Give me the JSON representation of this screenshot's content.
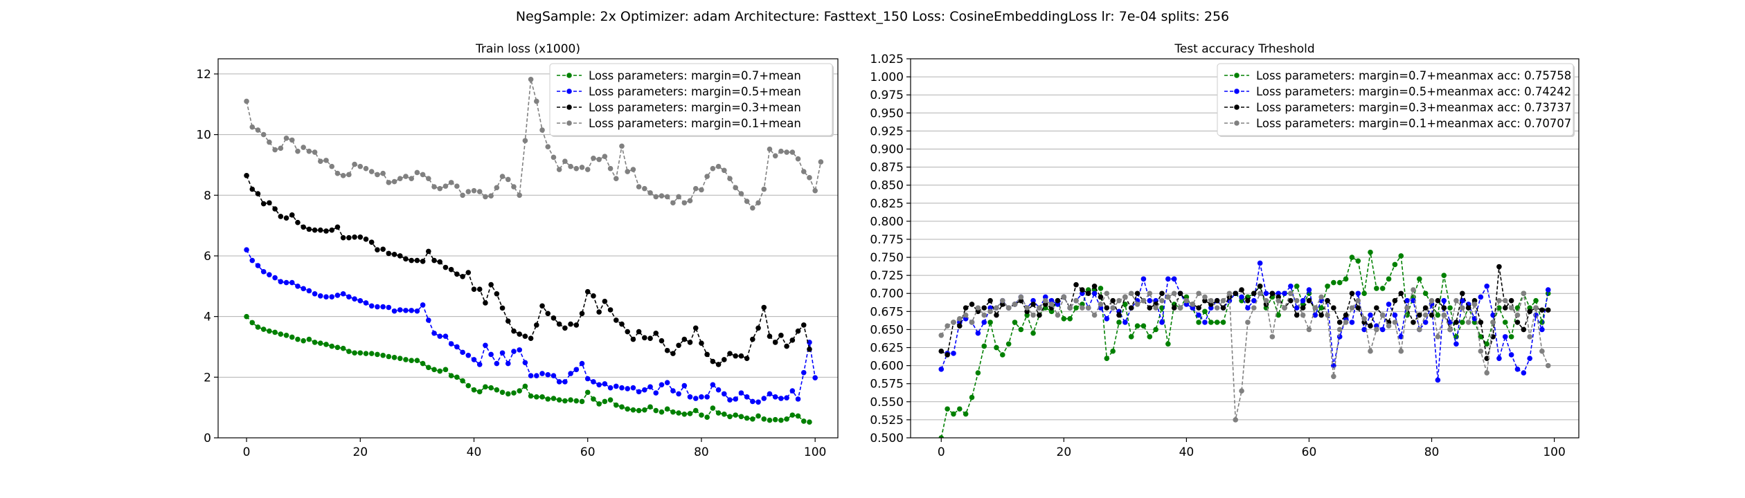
{
  "figure": {
    "suptitle": "NegSample: 2x Optimizer: adam Architecture: Fasttext_150 Loss: CosineEmbeddingLoss lr: 7e-04 splits: 256"
  },
  "chart_data": [
    {
      "type": "line",
      "title": "Train loss (x1000)",
      "xlabel": "",
      "ylabel": "",
      "xlim": [
        -5,
        104
      ],
      "ylim": [
        0,
        12.5
      ],
      "xticks": [
        "0",
        "20",
        "40",
        "60",
        "80",
        "100"
      ],
      "yticks": [
        "0",
        "2",
        "4",
        "6",
        "8",
        "10",
        "12"
      ],
      "grid": "horizontal",
      "legend_position": "top-right",
      "x": "0..99",
      "series": [
        {
          "name": "Loss parameters: margin=0.7+mean",
          "color": "#008000",
          "values": [
            4.0,
            3.8,
            3.65,
            3.58,
            3.52,
            3.48,
            3.42,
            3.38,
            3.32,
            3.25,
            3.2,
            3.25,
            3.15,
            3.12,
            3.08,
            3.02,
            2.98,
            2.95,
            2.85,
            2.8,
            2.8,
            2.78,
            2.78,
            2.75,
            2.72,
            2.68,
            2.65,
            2.62,
            2.58,
            2.55,
            2.55,
            2.45,
            2.32,
            2.25,
            2.2,
            2.25,
            2.05,
            2.0,
            1.88,
            1.72,
            1.58,
            1.52,
            1.68,
            1.65,
            1.58,
            1.5,
            1.45,
            1.48,
            1.55,
            1.7,
            1.38,
            1.35,
            1.35,
            1.28,
            1.3,
            1.25,
            1.22,
            1.25,
            1.22,
            1.2,
            1.5,
            1.28,
            1.12,
            1.2,
            1.25,
            1.08,
            1.02,
            0.95,
            0.92,
            0.9,
            0.92,
            1.02,
            0.9,
            0.85,
            0.95,
            0.85,
            0.82,
            0.78,
            0.8,
            0.9,
            0.75,
            0.68,
            0.98,
            0.82,
            0.78,
            0.7,
            0.75,
            0.7,
            0.65,
            0.62,
            0.72,
            0.62,
            0.58,
            0.6,
            0.58,
            0.62,
            0.75,
            0.72,
            0.55,
            0.52
          ]
        },
        {
          "name": "Loss parameters: margin=0.5+mean",
          "color": "#0000ff",
          "values": [
            6.2,
            5.85,
            5.68,
            5.48,
            5.38,
            5.28,
            5.15,
            5.12,
            5.12,
            5.0,
            4.92,
            4.85,
            4.75,
            4.68,
            4.65,
            4.65,
            4.7,
            4.75,
            4.65,
            4.58,
            4.52,
            4.45,
            4.35,
            4.32,
            4.32,
            4.3,
            4.18,
            4.22,
            4.2,
            4.2,
            4.18,
            4.38,
            3.88,
            3.45,
            3.35,
            3.35,
            3.1,
            3.0,
            2.82,
            2.72,
            2.58,
            2.42,
            3.05,
            2.75,
            2.45,
            2.8,
            2.45,
            2.85,
            2.9,
            2.48,
            2.05,
            2.05,
            2.12,
            2.08,
            2.05,
            1.85,
            1.85,
            2.12,
            2.25,
            2.45,
            1.95,
            1.85,
            1.75,
            1.78,
            1.65,
            1.7,
            1.65,
            1.62,
            1.65,
            1.52,
            1.58,
            1.68,
            1.48,
            1.75,
            1.82,
            1.55,
            1.45,
            1.72,
            1.35,
            1.3,
            1.35,
            1.35,
            1.75,
            1.58,
            1.45,
            1.25,
            1.28,
            1.48,
            1.35,
            1.2,
            1.18,
            1.3,
            1.45,
            1.35,
            1.3,
            1.32,
            1.55,
            1.28,
            2.15,
            3.15,
            1.98
          ]
        },
        {
          "name": "Loss parameters: margin=0.3+mean",
          "color": "#000000",
          "values": [
            8.65,
            8.2,
            8.05,
            7.72,
            7.75,
            7.55,
            7.3,
            7.25,
            7.35,
            7.1,
            6.95,
            6.88,
            6.85,
            6.85,
            6.82,
            6.85,
            6.95,
            6.6,
            6.6,
            6.62,
            6.62,
            6.55,
            6.45,
            6.2,
            6.22,
            6.08,
            6.05,
            6.0,
            5.9,
            5.85,
            5.85,
            5.82,
            6.15,
            5.85,
            5.8,
            5.62,
            5.55,
            5.4,
            5.32,
            5.45,
            4.9,
            4.9,
            4.45,
            5.05,
            4.75,
            4.28,
            3.85,
            3.52,
            3.42,
            3.35,
            3.28,
            3.72,
            4.35,
            4.1,
            3.95,
            3.75,
            3.62,
            3.75,
            3.72,
            4.1,
            4.82,
            4.68,
            4.15,
            4.5,
            4.22,
            3.88,
            3.75,
            3.5,
            3.25,
            3.5,
            3.3,
            3.28,
            3.45,
            3.2,
            2.88,
            2.78,
            3.05,
            3.25,
            3.15,
            3.62,
            3.12,
            2.75,
            2.52,
            2.42,
            2.58,
            2.78,
            2.7,
            2.7,
            2.62,
            3.25,
            3.62,
            4.3,
            3.35,
            3.15,
            3.38,
            3.02,
            3.22,
            3.52,
            3.72,
            2.92
          ]
        },
        {
          "name": "Loss parameters: margin=0.1+mean",
          "color": "#808080",
          "values": [
            11.1,
            10.25,
            10.15,
            10.0,
            9.75,
            9.5,
            9.55,
            9.88,
            9.82,
            9.45,
            9.58,
            9.45,
            9.42,
            9.12,
            9.15,
            8.95,
            8.72,
            8.65,
            8.68,
            9.02,
            8.95,
            8.88,
            8.78,
            8.68,
            8.72,
            8.42,
            8.45,
            8.55,
            8.62,
            8.55,
            8.75,
            8.68,
            8.55,
            8.28,
            8.22,
            8.3,
            8.42,
            8.3,
            8.0,
            8.12,
            8.15,
            8.12,
            7.95,
            7.98,
            8.25,
            8.62,
            8.52,
            8.28,
            8.0,
            9.8,
            11.82,
            11.1,
            10.15,
            9.6,
            9.25,
            8.85,
            9.12,
            8.95,
            8.88,
            8.92,
            8.85,
            9.22,
            9.18,
            9.28,
            8.88,
            8.55,
            9.62,
            8.78,
            8.85,
            8.28,
            8.22,
            8.08,
            7.95,
            7.98,
            7.95,
            7.75,
            7.95,
            7.75,
            7.82,
            8.22,
            8.18,
            8.62,
            8.88,
            8.95,
            8.82,
            8.55,
            8.25,
            8.05,
            7.8,
            7.58,
            7.75,
            8.2,
            9.52,
            9.3,
            9.45,
            9.42,
            9.42,
            9.2,
            8.78,
            8.58,
            8.15,
            9.1
          ]
        }
      ]
    },
    {
      "type": "line",
      "title": "Test accuracy Trheshold",
      "xlabel": "",
      "ylabel": "",
      "xlim": [
        -5,
        104
      ],
      "ylim": [
        0.5,
        1.025
      ],
      "xticks": [
        "0",
        "20",
        "40",
        "60",
        "80",
        "100"
      ],
      "yticks": [
        "0.500",
        "0.525",
        "0.550",
        "0.575",
        "0.600",
        "0.625",
        "0.650",
        "0.675",
        "0.700",
        "0.725",
        "0.750",
        "0.775",
        "0.800",
        "0.825",
        "0.850",
        "0.875",
        "0.900",
        "0.925",
        "0.950",
        "0.975",
        "1.000",
        "1.025"
      ],
      "grid": "horizontal",
      "legend_position": "top-right",
      "x": "0..99",
      "series": [
        {
          "name": "Loss parameters: margin=0.7+meanmax acc: 0.75758",
          "color": "#008000",
          "values": [
            0.5,
            0.54,
            0.533,
            0.54,
            0.533,
            0.556,
            0.59,
            0.627,
            0.66,
            0.625,
            0.615,
            0.63,
            0.66,
            0.65,
            0.67,
            0.645,
            0.67,
            0.68,
            0.675,
            0.69,
            0.665,
            0.665,
            0.68,
            0.685,
            0.705,
            0.705,
            0.707,
            0.61,
            0.62,
            0.66,
            0.685,
            0.64,
            0.655,
            0.655,
            0.64,
            0.65,
            0.68,
            0.63,
            0.685,
            0.68,
            0.695,
            0.68,
            0.66,
            0.675,
            0.66,
            0.66,
            0.66,
            0.69,
            0.7,
            0.69,
            0.695,
            0.7,
            0.71,
            0.68,
            0.695,
            0.67,
            0.7,
            0.7,
            0.71,
            0.685,
            0.7,
            0.67,
            0.68,
            0.71,
            0.715,
            0.715,
            0.72,
            0.75,
            0.745,
            0.7,
            0.757,
            0.707,
            0.707,
            0.72,
            0.74,
            0.752,
            0.67,
            0.695,
            0.72,
            0.7,
            0.685,
            0.67,
            0.725,
            0.68,
            0.64,
            0.66,
            0.68,
            0.66,
            0.64,
            0.63,
            0.66,
            0.68,
            0.66,
            0.64,
            0.68,
            0.7,
            0.68,
            0.69,
            0.66,
            0.7
          ]
        },
        {
          "name": "Loss parameters: margin=0.5+meanmax acc: 0.74242",
          "color": "#0000ff",
          "values": [
            0.595,
            0.617,
            0.617,
            0.66,
            0.665,
            0.66,
            0.645,
            0.66,
            0.68,
            0.68,
            0.69,
            0.68,
            0.685,
            0.695,
            0.68,
            0.69,
            0.68,
            0.695,
            0.69,
            0.685,
            0.695,
            0.68,
            0.69,
            0.7,
            0.68,
            0.7,
            0.68,
            0.665,
            0.68,
            0.675,
            0.66,
            0.68,
            0.69,
            0.72,
            0.69,
            0.69,
            0.66,
            0.72,
            0.72,
            0.7,
            0.685,
            0.68,
            0.67,
            0.66,
            0.68,
            0.69,
            0.68,
            0.69,
            0.7,
            0.695,
            0.68,
            0.69,
            0.742,
            0.7,
            0.7,
            0.7,
            0.7,
            0.71,
            0.68,
            0.69,
            0.705,
            0.67,
            0.69,
            0.69,
            0.6,
            0.64,
            0.665,
            0.66,
            0.7,
            0.65,
            0.67,
            0.655,
            0.65,
            0.685,
            0.67,
            0.64,
            0.69,
            0.69,
            0.65,
            0.66,
            0.685,
            0.58,
            0.69,
            0.66,
            0.63,
            0.69,
            0.685,
            0.665,
            0.695,
            0.71,
            0.67,
            0.61,
            0.64,
            0.615,
            0.595,
            0.59,
            0.61,
            0.67,
            0.65,
            0.705
          ]
        },
        {
          "name": "Loss parameters: margin=0.3+meanmax acc: 0.73737",
          "color": "#000000",
          "values": [
            0.62,
            0.615,
            0.66,
            0.655,
            0.68,
            0.685,
            0.675,
            0.68,
            0.69,
            0.67,
            0.685,
            0.68,
            0.685,
            0.69,
            0.675,
            0.685,
            0.67,
            0.685,
            0.68,
            0.69,
            0.695,
            0.68,
            0.712,
            0.705,
            0.7,
            0.71,
            0.695,
            0.68,
            0.69,
            0.67,
            0.695,
            0.68,
            0.7,
            0.69,
            0.68,
            0.685,
            0.7,
            0.695,
            0.68,
            0.7,
            0.69,
            0.685,
            0.68,
            0.69,
            0.685,
            0.69,
            0.68,
            0.695,
            0.7,
            0.705,
            0.69,
            0.7,
            0.71,
            0.685,
            0.7,
            0.695,
            0.68,
            0.69,
            0.67,
            0.68,
            0.69,
            0.68,
            0.67,
            0.69,
            0.68,
            0.66,
            0.67,
            0.7,
            0.68,
            0.66,
            0.655,
            0.68,
            0.67,
            0.66,
            0.69,
            0.7,
            0.68,
            0.66,
            0.67,
            0.68,
            0.67,
            0.69,
            0.68,
            0.65,
            0.66,
            0.7,
            0.68,
            0.69,
            0.66,
            0.61,
            0.64,
            0.737,
            0.68,
            0.69,
            0.66,
            0.65,
            0.675,
            0.68,
            0.677,
            0.677
          ]
        },
        {
          "name": "Loss parameters: margin=0.1+meanmax acc: 0.70707",
          "color": "#808080",
          "values": [
            0.642,
            0.655,
            0.66,
            0.665,
            0.67,
            0.66,
            0.68,
            0.67,
            0.675,
            0.68,
            0.69,
            0.68,
            0.685,
            0.695,
            0.68,
            0.67,
            0.68,
            0.69,
            0.685,
            0.67,
            0.695,
            0.68,
            0.69,
            0.68,
            0.68,
            0.67,
            0.685,
            0.7,
            0.68,
            0.69,
            0.695,
            0.7,
            0.685,
            0.69,
            0.7,
            0.68,
            0.69,
            0.695,
            0.7,
            0.68,
            0.69,
            0.685,
            0.7,
            0.695,
            0.69,
            0.68,
            0.69,
            0.7,
            0.525,
            0.565,
            0.66,
            0.68,
            0.7,
            0.69,
            0.64,
            0.69,
            0.68,
            0.7,
            0.69,
            0.67,
            0.65,
            0.68,
            0.695,
            0.67,
            0.585,
            0.65,
            0.66,
            0.68,
            0.69,
            0.665,
            0.62,
            0.65,
            0.67,
            0.655,
            0.66,
            0.62,
            0.68,
            0.705,
            0.65,
            0.67,
            0.69,
            0.64,
            0.67,
            0.65,
            0.69,
            0.68,
            0.66,
            0.685,
            0.62,
            0.59,
            0.66,
            0.69,
            0.69,
            0.68,
            0.67,
            0.7,
            0.64,
            0.68,
            0.62,
            0.6
          ]
        }
      ]
    }
  ]
}
